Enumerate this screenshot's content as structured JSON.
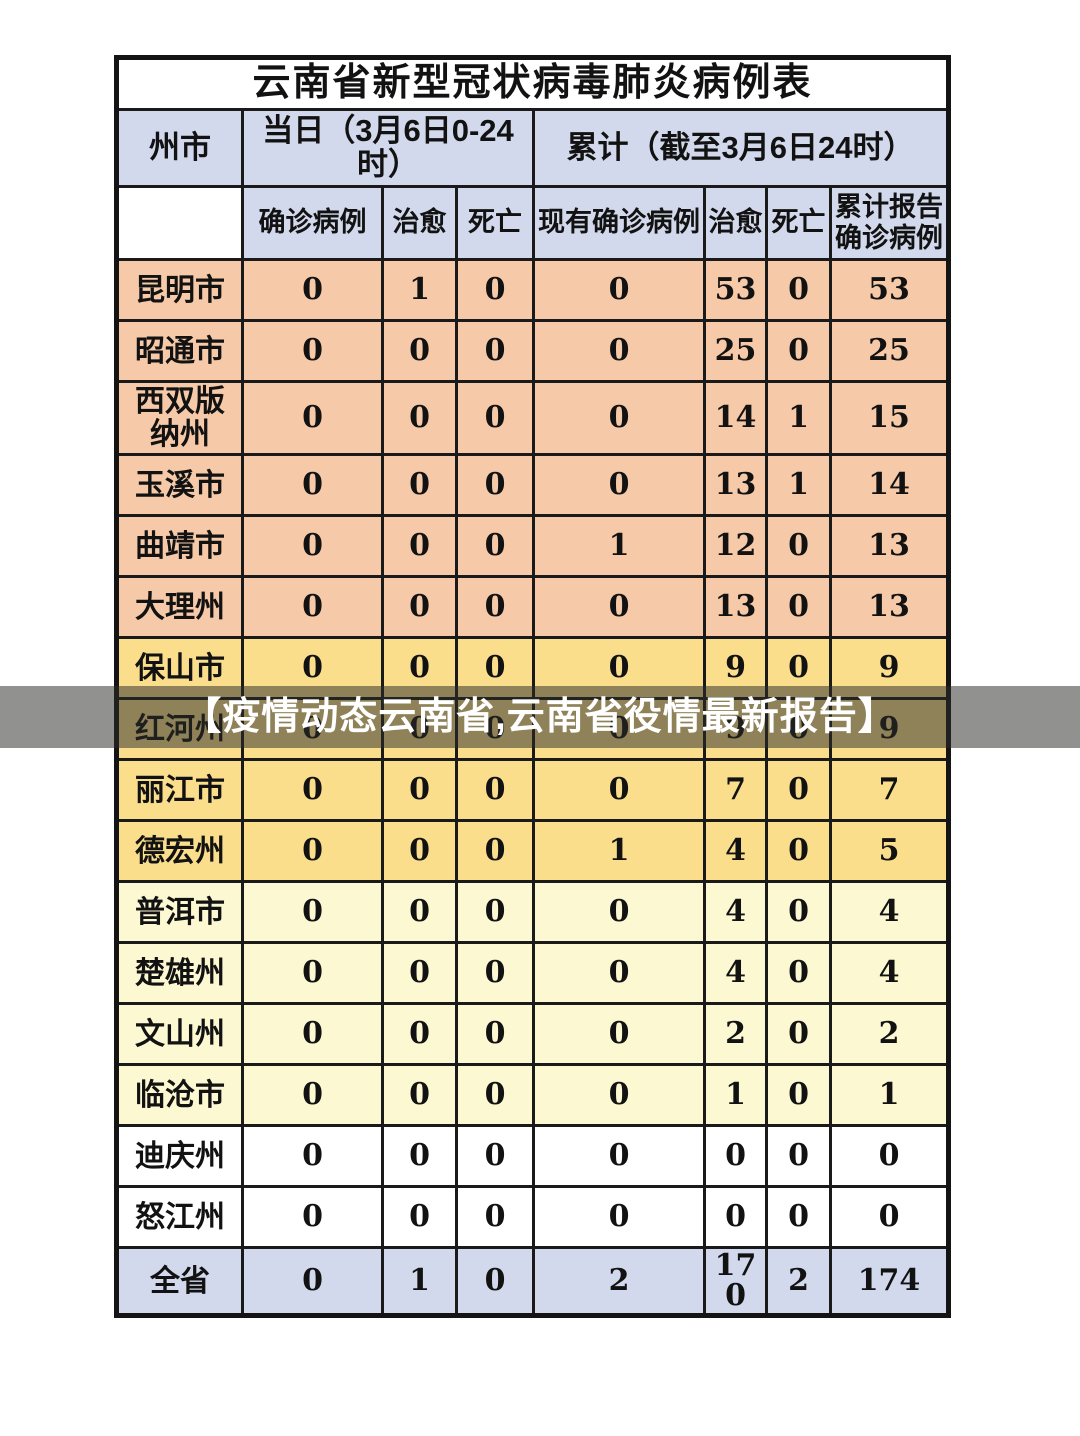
{
  "overlay": {
    "text": "【疫情动态云南省,云南省役情最新报告】"
  },
  "table": {
    "title": "云南省新型冠状病毒肺炎病例表",
    "header": {
      "col_region": "州市",
      "group_daily": "当日（3月6日0-24时）",
      "group_cumulative": "累计（截至3月6日24时）",
      "sub": [
        "确诊病例",
        "治愈",
        "死亡",
        "现有确诊病例",
        "治愈",
        "死亡",
        "累计报告确诊病例"
      ]
    },
    "rows": [
      {
        "name": "昆明市",
        "tone": "salmon",
        "values": [
          0,
          1,
          0,
          0,
          53,
          0,
          53
        ]
      },
      {
        "name": "昭通市",
        "tone": "salmon",
        "values": [
          0,
          0,
          0,
          0,
          25,
          0,
          25
        ]
      },
      {
        "name": "西双版纳州",
        "tone": "salmon",
        "values": [
          0,
          0,
          0,
          0,
          14,
          1,
          15
        ]
      },
      {
        "name": "玉溪市",
        "tone": "salmon",
        "values": [
          0,
          0,
          0,
          0,
          13,
          1,
          14
        ]
      },
      {
        "name": "曲靖市",
        "tone": "salmon",
        "values": [
          0,
          0,
          0,
          1,
          12,
          0,
          13
        ]
      },
      {
        "name": "大理州",
        "tone": "salmon",
        "values": [
          0,
          0,
          0,
          0,
          13,
          0,
          13
        ]
      },
      {
        "name": "保山市",
        "tone": "gold",
        "values": [
          0,
          0,
          0,
          0,
          9,
          0,
          9
        ]
      },
      {
        "name": "红河州",
        "tone": "gold",
        "values": [
          0,
          0,
          0,
          0,
          9,
          0,
          9
        ]
      },
      {
        "name": "丽江市",
        "tone": "gold",
        "values": [
          0,
          0,
          0,
          0,
          7,
          0,
          7
        ]
      },
      {
        "name": "德宏州",
        "tone": "gold",
        "values": [
          0,
          0,
          0,
          1,
          4,
          0,
          5
        ]
      },
      {
        "name": "普洱市",
        "tone": "pale",
        "values": [
          0,
          0,
          0,
          0,
          4,
          0,
          4
        ]
      },
      {
        "name": "楚雄州",
        "tone": "pale",
        "values": [
          0,
          0,
          0,
          0,
          4,
          0,
          4
        ]
      },
      {
        "name": "文山州",
        "tone": "pale",
        "values": [
          0,
          0,
          0,
          0,
          2,
          0,
          2
        ]
      },
      {
        "name": "临沧市",
        "tone": "pale",
        "values": [
          0,
          0,
          0,
          0,
          1,
          0,
          1
        ]
      },
      {
        "name": "迪庆州",
        "tone": "white",
        "values": [
          0,
          0,
          0,
          0,
          0,
          0,
          0
        ]
      },
      {
        "name": "怒江州",
        "tone": "white",
        "values": [
          0,
          0,
          0,
          0,
          0,
          0,
          0
        ]
      },
      {
        "name": "全省",
        "tone": "total",
        "values": [
          0,
          1,
          0,
          2,
          170,
          2,
          174
        ]
      }
    ]
  },
  "colors": {
    "header_lavender": "#d3d9ec",
    "row_salmon": "#f6caa8",
    "row_gold": "#fade8c",
    "row_pale_yellow": "#fcf8d2",
    "row_white": "#ffffff",
    "border": "#1a1a1a",
    "watermark_text": "#ffffff"
  },
  "chart_data": {
    "type": "table",
    "title": "云南省新型冠状病毒肺炎病例表",
    "column_groups": [
      "州市",
      "当日（3月6日0-24时）",
      "累计（截至3月6日24时）"
    ],
    "columns": [
      "州市",
      "确诊病例",
      "治愈",
      "死亡",
      "现有确诊病例",
      "治愈",
      "死亡",
      "累计报告确诊病例"
    ],
    "rows": [
      [
        "昆明市",
        0,
        1,
        0,
        0,
        53,
        0,
        53
      ],
      [
        "昭通市",
        0,
        0,
        0,
        0,
        25,
        0,
        25
      ],
      [
        "西双版纳州",
        0,
        0,
        0,
        0,
        14,
        1,
        15
      ],
      [
        "玉溪市",
        0,
        0,
        0,
        0,
        13,
        1,
        14
      ],
      [
        "曲靖市",
        0,
        0,
        0,
        1,
        12,
        0,
        13
      ],
      [
        "大理州",
        0,
        0,
        0,
        0,
        13,
        0,
        13
      ],
      [
        "保山市",
        0,
        0,
        0,
        0,
        9,
        0,
        9
      ],
      [
        "红河州",
        0,
        0,
        0,
        0,
        9,
        0,
        9
      ],
      [
        "丽江市",
        0,
        0,
        0,
        0,
        7,
        0,
        7
      ],
      [
        "德宏州",
        0,
        0,
        0,
        1,
        4,
        0,
        5
      ],
      [
        "普洱市",
        0,
        0,
        0,
        0,
        4,
        0,
        4
      ],
      [
        "楚雄州",
        0,
        0,
        0,
        0,
        4,
        0,
        4
      ],
      [
        "文山州",
        0,
        0,
        0,
        0,
        2,
        0,
        2
      ],
      [
        "临沧市",
        0,
        0,
        0,
        0,
        1,
        0,
        1
      ],
      [
        "迪庆州",
        0,
        0,
        0,
        0,
        0,
        0,
        0
      ],
      [
        "怒江州",
        0,
        0,
        0,
        0,
        0,
        0,
        0
      ],
      [
        "全省",
        0,
        1,
        0,
        2,
        170,
        2,
        174
      ]
    ],
    "annotation": "【疫情动态云南省,云南省役情最新报告】"
  }
}
